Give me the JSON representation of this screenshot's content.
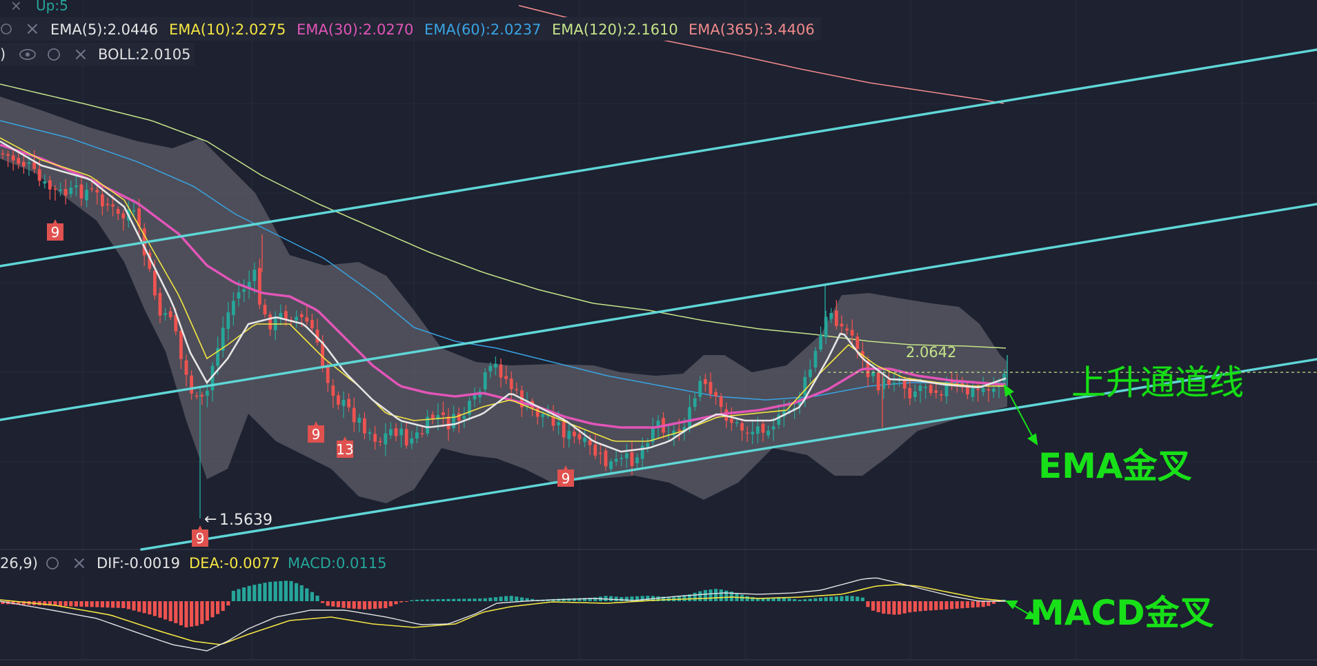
{
  "colors": {
    "background": "#1d2130",
    "grid": "#282d3d",
    "up": "#26a69a",
    "down": "#ef5350",
    "ema5": "#e6e6e6",
    "ema10": "#f5e642",
    "ema30": "#e255b7",
    "ema60": "#3aa3e3",
    "ema120": "#c7e58a",
    "ema365": "#f08a8a",
    "boll_band": "#6b6b72",
    "channel": "#5fd6d6",
    "annotation": "#18e018",
    "seq_badge": "#e0524f",
    "dif": "#e6e6e6",
    "dea": "#f5e642"
  },
  "header": {
    "top_label": "Up:5",
    "ema_row": [
      {
        "label": "EMA(5):2.0446",
        "color": "#e6e6e6"
      },
      {
        "label": "EMA(10):2.0275",
        "color": "#f5e642"
      },
      {
        "label": "EMA(30):2.0270",
        "color": "#e255b7"
      },
      {
        "label": "EMA(60):2.0237",
        "color": "#3aa3e3"
      },
      {
        "label": "EMA(120):2.1610",
        "color": "#c7e58a"
      },
      {
        "label": "EMA(365):3.4406",
        "color": "#f08a8a"
      }
    ],
    "boll_prefix": ")",
    "boll_label": "BOLL:2.0105"
  },
  "macd_header": {
    "prefix": "26,9)",
    "dif": "DIF:-0.0019",
    "dea": "DEA:-0.0077",
    "macd": "MACD:0.0115"
  },
  "annotations": {
    "channel": "上升通道线",
    "ema_cross": "EMA金叉",
    "macd_cross": "MACD金叉",
    "low_price": "1.5639",
    "recent_high": "2.0642"
  },
  "badges": [
    "9",
    "9",
    "13",
    "9",
    "9"
  ],
  "icons": [
    "eye-icon",
    "settings-icon",
    "close-icon"
  ],
  "chart_data": {
    "type": "candlestick",
    "y_scale": "price",
    "indicators": [
      "EMA5",
      "EMA10",
      "EMA30",
      "EMA60",
      "EMA120",
      "EMA365",
      "BOLL",
      "MACD"
    ],
    "price_range": [
      1.52,
      2.45
    ],
    "key_values": {
      "swing_low": 1.5639,
      "recent_high": 2.0642,
      "last_close": 2.046
    }
  }
}
